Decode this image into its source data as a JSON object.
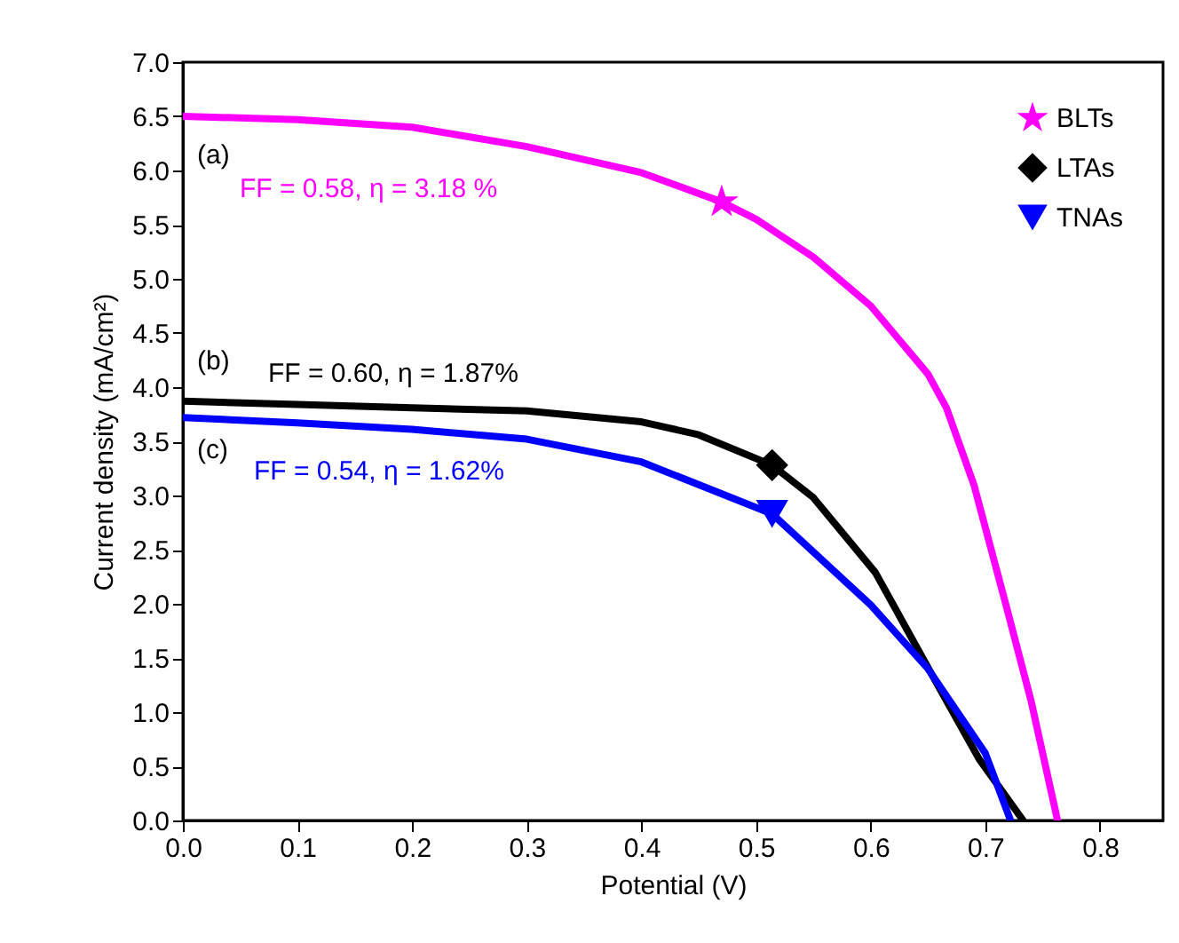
{
  "chart_data": {
    "type": "line",
    "xlabel": "Potential (V)",
    "ylabel": "Current density (mA/cm²)",
    "xlim": [
      0,
      0.855
    ],
    "ylim": [
      0,
      7.0
    ],
    "xticks": [
      {
        "value": 0,
        "label": "0.0"
      },
      0.1,
      0.2,
      0.3,
      0.4,
      0.5,
      0.6,
      0.7,
      0.8
    ],
    "yticks": [
      {
        "value": 0,
        "label": "0.0"
      },
      0.5,
      {
        "value": 1,
        "label": "1.0"
      },
      1.5,
      {
        "value": 2,
        "label": "2.0"
      },
      2.5,
      {
        "value": 3,
        "label": "3.0"
      },
      3.5,
      {
        "value": 4,
        "label": "4.0"
      },
      4.5,
      {
        "value": 5,
        "label": "5.0"
      },
      5.5,
      {
        "value": 6,
        "label": "6.0"
      },
      6.5,
      {
        "value": 7,
        "label": "7.0"
      }
    ],
    "grid": false,
    "legend": "top right",
    "line_style": "solid",
    "series": [
      {
        "marker": "none",
        "color": "#ff00ff",
        "x": [
          0,
          0.1,
          0.2,
          0.3,
          0.4,
          0.47,
          0.5,
          0.55,
          0.6,
          0.65,
          0.666,
          0.69,
          0.718,
          0.74,
          0.763
        ],
        "values": [
          6.5,
          6.47,
          6.4,
          6.22,
          5.98,
          5.71,
          5.55,
          5.2,
          4.75,
          4.12,
          3.81,
          3.1,
          1.99,
          1.1,
          0
        ]
      },
      {
        "marker": "none",
        "color": "#000000",
        "x": [
          0,
          0.1,
          0.2,
          0.3,
          0.4,
          0.45,
          0.514,
          0.55,
          0.604,
          0.66,
          0.695,
          0.733
        ],
        "values": [
          3.87,
          3.84,
          3.81,
          3.78,
          3.68,
          3.56,
          3.28,
          2.98,
          2.29,
          1.22,
          0.56,
          0
        ]
      },
      {
        "marker": "none",
        "color": "#0000ff",
        "x": [
          0,
          0.1,
          0.2,
          0.3,
          0.4,
          0.514,
          0.6,
          0.65,
          0.7,
          0.722
        ],
        "values": [
          3.72,
          3.67,
          3.61,
          3.52,
          3.31,
          2.83,
          1.99,
          1.4,
          0.62,
          0
        ]
      },
      {
        "type": "scatter",
        "marker": "star",
        "name": "BLTs",
        "color": "#ff00ff",
        "x": [
          0.47
        ],
        "values": [
          5.71
        ]
      },
      {
        "type": "scatter",
        "marker": "diamond",
        "name": "LTAs",
        "color": "#000000",
        "x": [
          0.514
        ],
        "values": [
          3.28
        ]
      },
      {
        "type": "scatter",
        "marker": "triangle",
        "name": "TNAs",
        "color": "#0000ff",
        "x": [
          0.514
        ],
        "values": [
          2.83
        ]
      }
    ],
    "annotations": [
      "(a)",
      "FF = 0.58, η = 3.18 %",
      "(b)",
      "FF = 0.60, η = 1.87%",
      "(c)",
      "FF = 0.54, η = 1.62%"
    ]
  }
}
